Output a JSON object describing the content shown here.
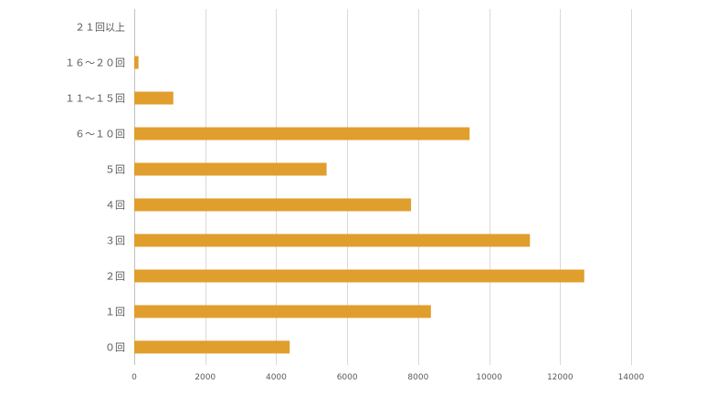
{
  "chart_data": {
    "type": "bar",
    "orientation": "horizontal",
    "categories": [
      "21回以上",
      "16〜20回",
      "11〜15回",
      "6〜10回",
      "5回",
      "4回",
      "3回",
      "2回",
      "1回",
      "0回"
    ],
    "category_labels": [
      "２１回以上",
      "１６〜２０回",
      "１１〜１５回",
      "６〜１０回",
      "５回",
      "４回",
      "３回",
      "２回",
      "１回",
      "０回"
    ],
    "values": [
      0,
      120,
      1100,
      9450,
      5420,
      7800,
      11150,
      12680,
      8360,
      4380
    ],
    "x_ticks": [
      "0",
      "2000",
      "4000",
      "6000",
      "8000",
      "10000",
      "12000",
      "14000"
    ],
    "xlim": [
      0,
      14000
    ],
    "bar_color": "#E09E2C",
    "grid": true,
    "legend": "none",
    "title": "",
    "xlabel": "",
    "ylabel": ""
  }
}
